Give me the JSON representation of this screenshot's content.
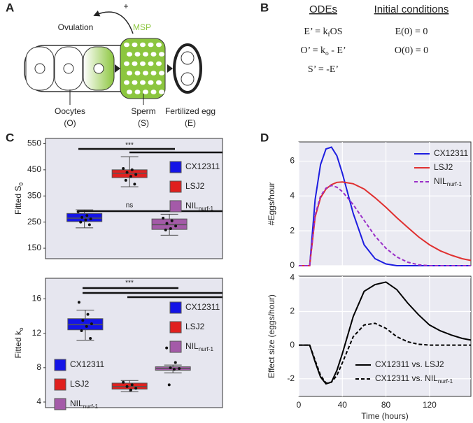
{
  "panel_labels": [
    "A",
    "B",
    "C",
    "D"
  ],
  "diagram": {
    "ovulation": "Ovulation",
    "plus": "+",
    "msp": "MSP",
    "nodes": [
      {
        "label": "Oocytes",
        "symbol": "(O)"
      },
      {
        "label": "Sperm",
        "symbol": "(S)"
      },
      {
        "label": "Fertilized egg",
        "symbol": "(E)"
      }
    ]
  },
  "model": {
    "odes_title": "ODEs",
    "init_title": "Initial conditions",
    "odes": [
      {
        "text": "E’ = k",
        "sub": "f",
        "tail": "OS"
      },
      {
        "text": "O’ = k",
        "sub": "o",
        "tail": " - E’"
      },
      {
        "text": "S’ = -E’"
      }
    ],
    "initial": [
      "E(0) = 0",
      "O(0) = 0"
    ]
  },
  "chart_data": [
    {
      "type": "box",
      "ylabel": "Fitted S",
      "ylabel_sub": "0",
      "ylim": [
        110,
        570
      ],
      "yticks": [
        150,
        250,
        350,
        450,
        550
      ],
      "series": [
        {
          "name": "CX12311",
          "color": "#1414e6",
          "whislo": 228,
          "q1": 252,
          "median": 265,
          "q3": 283,
          "whishi": 297,
          "points": [
            290,
            275,
            268,
            262,
            258,
            250,
            240
          ]
        },
        {
          "name": "LSJ2",
          "color": "#e0201e",
          "whislo": 385,
          "q1": 420,
          "median": 437,
          "q3": 450,
          "whishi": 500,
          "points": [
            455,
            450,
            440,
            432,
            425,
            410,
            395
          ]
        },
        {
          "name": "NIL",
          "name_sub": "nurf-1",
          "color": "#a45aa8",
          "whislo": 200,
          "q1": 222,
          "median": 240,
          "q3": 262,
          "whishi": 280,
          "points": [
            265,
            255,
            245,
            235,
            225,
            220
          ]
        }
      ],
      "annotations": [
        "***",
        "ns"
      ],
      "legend": [
        "center right"
      ]
    },
    {
      "type": "box",
      "ylabel": "Fitted k",
      "ylabel_sub": "o",
      "ylim": [
        3.35,
        18.4
      ],
      "yticks": [
        4,
        8,
        12,
        16
      ],
      "series": [
        {
          "name": "CX12311",
          "color": "#1414e6",
          "whislo": 11.2,
          "q1": 12.4,
          "median": 13,
          "q3": 13.7,
          "whishi": 14.7,
          "points": [
            15.6,
            14.2,
            13.5,
            13.1,
            12.8,
            12.3,
            11.4
          ]
        },
        {
          "name": "LSJ2",
          "color": "#e0201e",
          "whislo": 5.2,
          "q1": 5.5,
          "median": 5.8,
          "q3": 6.2,
          "whishi": 6.5,
          "points": [
            6.3,
            6.0,
            5.8,
            5.6,
            5.4
          ]
        },
        {
          "name": "NIL",
          "name_sub": "nurf-1",
          "color": "#a45aa8",
          "whislo": 7.4,
          "q1": 7.7,
          "median": 7.9,
          "q3": 8.1,
          "whishi": 8.3,
          "points": [
            10.3,
            8.6,
            8.0,
            7.9,
            7.8,
            6.0
          ]
        }
      ],
      "annotations": [
        "***"
      ],
      "legend": [
        "upper right",
        "lower left"
      ]
    },
    {
      "type": "line",
      "ylabel": "#Eggs/hour",
      "xlim": [
        0,
        158
      ],
      "xticks": [
        0,
        40,
        80,
        120
      ],
      "ylim": [
        0,
        7.1
      ],
      "yticks": [
        0,
        2,
        4,
        6
      ],
      "grid": true,
      "xtick_labels": false,
      "legend": "upper right",
      "x": [
        0,
        5,
        10,
        15,
        20,
        25,
        30,
        35,
        40,
        50,
        60,
        70,
        80,
        90,
        100,
        110,
        120,
        130,
        140,
        150,
        158
      ],
      "series": [
        {
          "name": "CX12311",
          "color": "#1d1de0",
          "linestyle": "solid",
          "values": [
            0,
            0,
            0,
            3.8,
            5.8,
            6.7,
            6.8,
            6.3,
            5.3,
            3.0,
            1.2,
            0.4,
            0.1,
            0,
            0,
            0,
            0,
            0,
            0,
            0,
            0
          ]
        },
        {
          "name": "LSJ2",
          "color": "#e03030",
          "linestyle": "solid",
          "values": [
            0,
            0,
            0,
            2.8,
            3.9,
            4.4,
            4.65,
            4.78,
            4.8,
            4.7,
            4.4,
            3.9,
            3.35,
            2.75,
            2.2,
            1.65,
            1.2,
            0.85,
            0.6,
            0.4,
            0.3
          ]
        },
        {
          "name": "NIL",
          "name_sub": "nurf-1",
          "color": "#9a2fc8",
          "linestyle": "dashed",
          "values": [
            0,
            0,
            0,
            2.9,
            4.0,
            4.45,
            4.6,
            4.5,
            4.25,
            3.5,
            2.6,
            1.7,
            1.0,
            0.5,
            0.2,
            0.05,
            0,
            0,
            0,
            0,
            0
          ]
        }
      ]
    },
    {
      "type": "line",
      "ylabel": "Effect size (eggs/hour)",
      "xlabel": "Time (hours)",
      "xlim": [
        0,
        158
      ],
      "xticks": [
        0,
        40,
        80,
        120
      ],
      "ylim": [
        -3.05,
        4.1
      ],
      "yticks": [
        -2,
        0,
        2,
        4
      ],
      "grid": true,
      "xtick_labels": true,
      "legend": "lower right",
      "x": [
        0,
        5,
        10,
        15,
        20,
        25,
        30,
        35,
        40,
        50,
        60,
        70,
        80,
        90,
        100,
        110,
        120,
        130,
        140,
        150,
        158
      ],
      "series": [
        {
          "name": "CX12311 vs. LSJ2",
          "color": "#000000",
          "linestyle": "solid",
          "values": [
            0,
            0,
            0,
            -1.0,
            -1.9,
            -2.3,
            -2.2,
            -1.5,
            -0.5,
            1.7,
            3.2,
            3.6,
            3.75,
            3.3,
            2.5,
            1.8,
            1.2,
            0.85,
            0.6,
            0.4,
            0.3
          ]
        },
        {
          "name": "CX12311 vs. NIL",
          "name_sub": "nurf-1",
          "color": "#000000",
          "linestyle": "dashed",
          "values": [
            0,
            0,
            0,
            -0.9,
            -1.8,
            -2.25,
            -2.2,
            -1.8,
            -1.05,
            0.5,
            1.2,
            1.3,
            1.0,
            0.5,
            0.2,
            0.05,
            0,
            0,
            0,
            0,
            0
          ]
        }
      ]
    }
  ]
}
